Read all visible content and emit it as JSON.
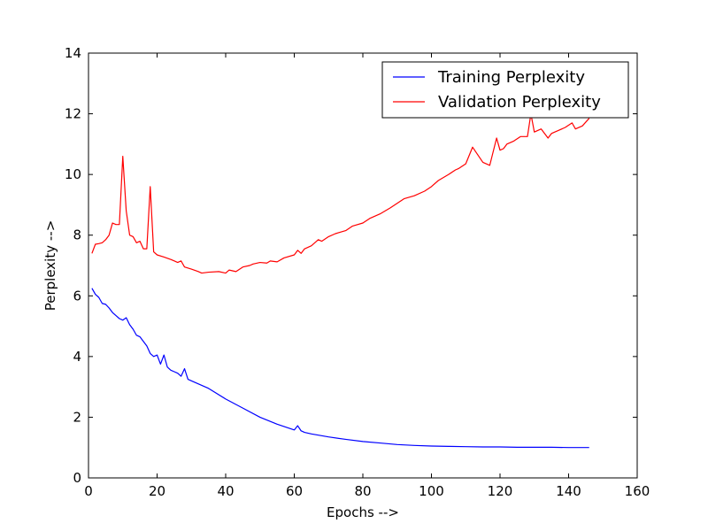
{
  "chart_data": {
    "type": "line",
    "title": "",
    "xlabel": "Epochs -->",
    "ylabel": "Perplexity -->",
    "xlim": [
      0,
      160
    ],
    "ylim": [
      0,
      14
    ],
    "xticks": [
      0,
      20,
      40,
      60,
      80,
      100,
      120,
      140,
      160
    ],
    "yticks": [
      0,
      2,
      4,
      6,
      8,
      10,
      12,
      14
    ],
    "grid": false,
    "legend_position": "top-right",
    "series": [
      {
        "name": "Training Perplexity",
        "color": "#0000ff",
        "x": [
          1,
          2,
          3,
          4,
          5,
          6,
          7,
          8,
          9,
          10,
          11,
          12,
          13,
          14,
          15,
          16,
          17,
          18,
          19,
          20,
          21,
          22,
          23,
          24,
          25,
          26,
          27,
          28,
          29,
          30,
          35,
          40,
          45,
          50,
          55,
          60,
          61,
          62,
          63,
          65,
          70,
          75,
          80,
          85,
          90,
          95,
          100,
          105,
          110,
          115,
          120,
          125,
          130,
          135,
          140,
          146
        ],
        "values": [
          6.25,
          6.05,
          5.95,
          5.75,
          5.72,
          5.6,
          5.45,
          5.35,
          5.25,
          5.2,
          5.28,
          5.05,
          4.9,
          4.7,
          4.65,
          4.5,
          4.35,
          4.1,
          4.0,
          4.05,
          3.75,
          4.05,
          3.65,
          3.55,
          3.5,
          3.45,
          3.35,
          3.6,
          3.25,
          3.2,
          2.95,
          2.6,
          2.3,
          2.0,
          1.77,
          1.58,
          1.72,
          1.55,
          1.5,
          1.45,
          1.35,
          1.27,
          1.2,
          1.15,
          1.1,
          1.07,
          1.05,
          1.04,
          1.03,
          1.02,
          1.02,
          1.01,
          1.01,
          1.01,
          1.0,
          1.0
        ]
      },
      {
        "name": "Validation Perplexity",
        "color": "#ff0000",
        "x": [
          1,
          2,
          3,
          4,
          5,
          6,
          7,
          8,
          9,
          10,
          11,
          12,
          13,
          14,
          15,
          16,
          17,
          18,
          19,
          20,
          22,
          24,
          25,
          26,
          27,
          28,
          30,
          32,
          33,
          35,
          38,
          40,
          41,
          43,
          45,
          47,
          48,
          50,
          52,
          53,
          55,
          57,
          60,
          61,
          62,
          63,
          65,
          67,
          68,
          70,
          72,
          75,
          77,
          80,
          82,
          85,
          88,
          90,
          92,
          95,
          98,
          100,
          102,
          105,
          107,
          108,
          110,
          112,
          115,
          117,
          119,
          120,
          121,
          122,
          124,
          126,
          128,
          129,
          130,
          132,
          134,
          135,
          137,
          139,
          141,
          142,
          144,
          146
        ],
        "values": [
          7.4,
          7.7,
          7.72,
          7.75,
          7.85,
          8.0,
          8.4,
          8.35,
          8.35,
          10.6,
          8.8,
          8.0,
          7.95,
          7.75,
          7.8,
          7.55,
          7.55,
          9.6,
          7.45,
          7.35,
          7.28,
          7.2,
          7.15,
          7.1,
          7.15,
          6.95,
          6.88,
          6.8,
          6.75,
          6.78,
          6.8,
          6.75,
          6.85,
          6.8,
          6.95,
          7.0,
          7.05,
          7.1,
          7.08,
          7.15,
          7.12,
          7.25,
          7.35,
          7.5,
          7.4,
          7.55,
          7.65,
          7.85,
          7.8,
          7.95,
          8.05,
          8.15,
          8.3,
          8.4,
          8.55,
          8.7,
          8.9,
          9.05,
          9.2,
          9.3,
          9.45,
          9.6,
          9.8,
          10.0,
          10.15,
          10.2,
          10.35,
          10.9,
          10.4,
          10.3,
          11.2,
          10.8,
          10.85,
          11.0,
          11.1,
          11.25,
          11.25,
          12.0,
          11.4,
          11.5,
          11.2,
          11.35,
          11.45,
          11.55,
          11.7,
          11.5,
          11.6,
          11.85
        ]
      }
    ]
  }
}
